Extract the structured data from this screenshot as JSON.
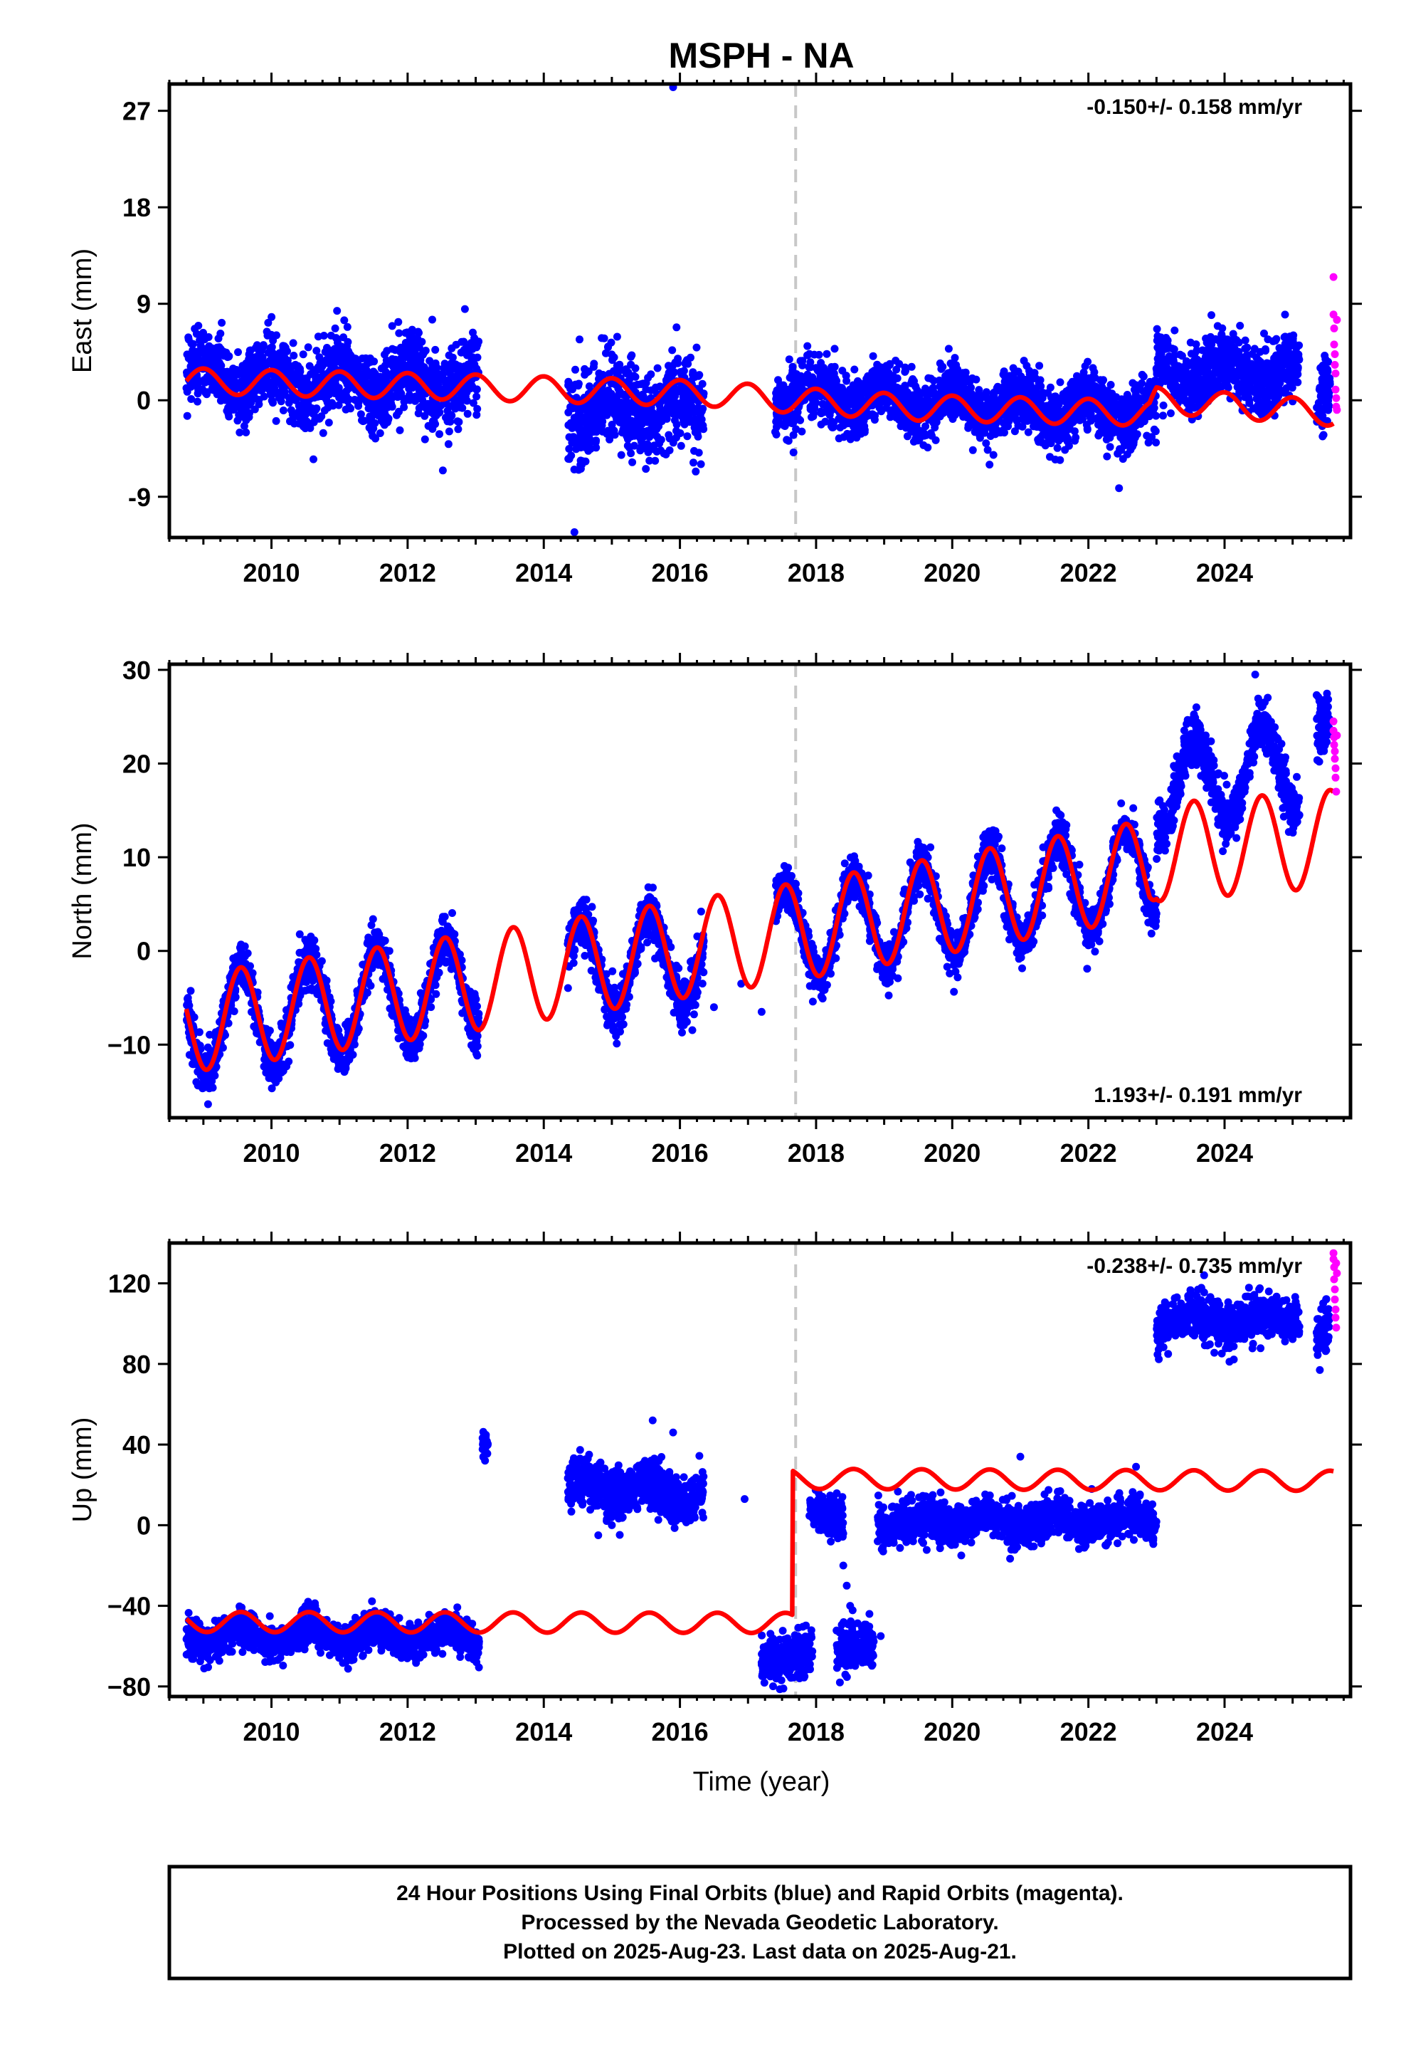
{
  "colors": {
    "final_orbits": "#0000ff",
    "rapid_orbits": "#ff00ff",
    "model": "#ff0000",
    "event_line": "#c8c8c8",
    "frame": "#000000"
  },
  "chart_data": {
    "type": "scatter",
    "title": "MSPH - NA",
    "xlabel": "Time (year)",
    "xlim": [
      2008.5,
      2025.85
    ],
    "x_ticks": [
      2010,
      2012,
      2014,
      2016,
      2018,
      2020,
      2022,
      2024
    ],
    "x_tick_labels": [
      "2010",
      "2012",
      "2014",
      "2016",
      "2018",
      "2020",
      "2022",
      "2024"
    ],
    "event_line_x": 2017.7,
    "footer": {
      "line1": "24 Hour Positions Using Final Orbits (blue) and Rapid Orbits (magenta).",
      "line2": "Processed by the Nevada Geodetic Laboratory.",
      "line3": "Plotted on 2025-Aug-23. Last data on 2025-Aug-21."
    },
    "panels": [
      {
        "id": "east",
        "ylabel": "East (mm)",
        "ylim": [
          -12.8,
          29.5
        ],
        "y_ticks": [
          -9,
          0,
          9,
          18,
          27
        ],
        "y_tick_labels": [
          "-9",
          "0",
          "9",
          "18",
          "27"
        ],
        "rate": "-0.150+/- 0.158 mm/yr",
        "rate_position": "top-right",
        "model": {
          "trend": [
            [
              2008.75,
              1.8
            ],
            [
              2013.0,
              1.2
            ],
            [
              2016.5,
              0.6
            ],
            [
              2017.65,
              0.0
            ],
            [
              2019.5,
              -0.7
            ],
            [
              2022.9,
              -1.2
            ],
            [
              2023.0,
              0.0
            ],
            [
              2025.6,
              -1.2
            ]
          ],
          "amplitude": 1.2,
          "phase_peak": 0.0
        },
        "segments": [
          {
            "start": 2008.75,
            "end": 2013.05,
            "trend": [
              [
                2008.75,
                2.0
              ],
              [
                2013.05,
                1.6
              ]
            ],
            "amp": 1.3,
            "peak": 0.0,
            "scatter": 1.8
          },
          {
            "start": 2014.35,
            "end": 2016.35,
            "trend": [
              [
                2014.35,
                -0.6
              ],
              [
                2016.35,
                -0.8
              ]
            ],
            "amp": 1.2,
            "peak": 0.0,
            "scatter": 2.0
          },
          {
            "start": 2017.4,
            "end": 2023.0,
            "trend": [
              [
                2017.4,
                0.6
              ],
              [
                2023.0,
                -1.2
              ]
            ],
            "amp": 1.2,
            "peak": 0.0,
            "scatter": 1.4
          },
          {
            "start": 2023.0,
            "end": 2025.1,
            "trend": [
              [
                2023.0,
                2.5
              ],
              [
                2025.1,
                2.7
              ]
            ],
            "amp": 1.0,
            "peak": 0.0,
            "scatter": 1.6
          },
          {
            "start": 2025.35,
            "end": 2025.55,
            "trend": [
              [
                2025.35,
                0.0
              ],
              [
                2025.55,
                1.0
              ]
            ],
            "amp": 0,
            "peak": 0.0,
            "scatter": 1.8
          }
        ],
        "outliers": [
          [
            2015.9,
            29.2
          ],
          [
            2014.45,
            -12.3
          ],
          [
            2015.95,
            6.8
          ],
          [
            2014.85,
            5.8
          ],
          [
            2022.45,
            -8.2
          ]
        ],
        "rapid": [
          [
            2025.6,
            11.5
          ],
          [
            2025.6,
            8.0
          ],
          [
            2025.61,
            6.7
          ],
          [
            2025.61,
            5.2
          ],
          [
            2025.62,
            4.3
          ],
          [
            2025.62,
            3.3
          ],
          [
            2025.63,
            2.5
          ],
          [
            2025.63,
            1.0
          ],
          [
            2025.64,
            0.2
          ],
          [
            2025.64,
            -0.6
          ],
          [
            2025.65,
            7.5
          ],
          [
            2025.65,
            -0.9
          ]
        ]
      },
      {
        "id": "north",
        "ylabel": "North (mm)",
        "ylim": [
          -17.8,
          30.6
        ],
        "y_ticks": [
          -10,
          0,
          10,
          20,
          30
        ],
        "y_tick_labels": [
          "−10",
          "0",
          "10",
          "20",
          "30"
        ],
        "rate": "1.193+/- 0.191 mm/yr",
        "rate_position": "bottom-right",
        "model": {
          "trend": [
            [
              2008.75,
              -7.8
            ],
            [
              2013.0,
              -3.3
            ],
            [
              2017.65,
              2.0
            ],
            [
              2022.9,
              8.8
            ],
            [
              2023.0,
              10.5
            ],
            [
              2025.6,
              12.0
            ]
          ],
          "amplitude": 5.2,
          "phase_peak": 0.55
        },
        "segments": [
          {
            "start": 2008.75,
            "end": 2013.05,
            "trend": [
              [
                2008.75,
                -8.0
              ],
              [
                2013.05,
                -3.5
              ]
            ],
            "amp": 5.3,
            "peak": 0.55,
            "scatter": 1.3
          },
          {
            "start": 2014.35,
            "end": 2016.35,
            "trend": [
              [
                2014.35,
                -2.0
              ],
              [
                2016.35,
                -0.5
              ]
            ],
            "amp": 5.0,
            "peak": 0.55,
            "scatter": 1.4
          },
          {
            "start": 2017.4,
            "end": 2023.0,
            "trend": [
              [
                2017.4,
                1.5
              ],
              [
                2023.0,
                8.5
              ]
            ],
            "amp": 5.0,
            "peak": 0.55,
            "scatter": 1.2
          },
          {
            "start": 2023.0,
            "end": 2025.1,
            "trend": [
              [
                2023.0,
                17.5
              ],
              [
                2025.1,
                20.0
              ]
            ],
            "amp": 4.8,
            "peak": 0.55,
            "scatter": 1.4
          },
          {
            "start": 2025.35,
            "end": 2025.55,
            "trend": [
              [
                2025.35,
                23.5
              ],
              [
                2025.55,
                24.5
              ]
            ],
            "amp": 0,
            "peak": 0.55,
            "scatter": 1.5
          }
        ],
        "outliers": [
          [
            2024.45,
            29.5
          ],
          [
            2017.2,
            -6.5
          ],
          [
            2016.9,
            -3.5
          ],
          [
            2016.5,
            -6.0
          ]
        ],
        "rapid": [
          [
            2025.6,
            24.5
          ],
          [
            2025.6,
            23.5
          ],
          [
            2025.61,
            22.8
          ],
          [
            2025.61,
            22.0
          ],
          [
            2025.62,
            21.3
          ],
          [
            2025.62,
            20.5
          ],
          [
            2025.63,
            19.5
          ],
          [
            2025.63,
            18.5
          ],
          [
            2025.64,
            17.0
          ],
          [
            2025.65,
            23.0
          ]
        ]
      },
      {
        "id": "up",
        "ylabel": "Up (mm)",
        "ylim": [
          -85,
          140
        ],
        "y_ticks": [
          -80,
          -40,
          0,
          40,
          80,
          120
        ],
        "y_tick_labels": [
          "−80",
          "−40",
          "0",
          "40",
          "80",
          "120"
        ],
        "rate": "-0.238+/- 0.735 mm/yr",
        "rate_position": "top-right",
        "model": {
          "trend": [
            [
              2008.75,
              -48.0
            ],
            [
              2017.65,
              -48.5
            ],
            [
              2017.66,
              23.0
            ],
            [
              2025.6,
              22.0
            ]
          ],
          "amplitude": 5.0,
          "phase_peak": 0.55
        },
        "segments": [
          {
            "start": 2008.75,
            "end": 2013.05,
            "trend": [
              [
                2008.75,
                -55.0
              ],
              [
                2013.05,
                -55.0
              ]
            ],
            "amp": 4.0,
            "peak": 0.55,
            "scatter": 4.5
          },
          {
            "start": 2013.1,
            "end": 2013.18,
            "trend": [
              [
                2013.1,
                40.0
              ],
              [
                2013.18,
                38.0
              ]
            ],
            "amp": 0,
            "peak": 0.55,
            "scatter": 3.5
          },
          {
            "start": 2014.35,
            "end": 2016.35,
            "trend": [
              [
                2014.35,
                20.0
              ],
              [
                2016.35,
                15.0
              ]
            ],
            "amp": 4.0,
            "peak": 0.55,
            "scatter": 6.0
          },
          {
            "start": 2017.2,
            "end": 2017.95,
            "trend": [
              [
                2017.2,
                -68.0
              ],
              [
                2017.95,
                -62.0
              ]
            ],
            "amp": 0,
            "peak": 0.55,
            "scatter": 5.5
          },
          {
            "start": 2017.9,
            "end": 2018.4,
            "trend": [
              [
                2017.9,
                8.0
              ],
              [
                2018.4,
                2.0
              ]
            ],
            "amp": 0,
            "peak": 0.55,
            "scatter": 5.0
          },
          {
            "start": 2018.3,
            "end": 2018.85,
            "trend": [
              [
                2018.3,
                -62.0
              ],
              [
                2018.85,
                -60.0
              ]
            ],
            "amp": 0,
            "peak": 0.55,
            "scatter": 6.0
          },
          {
            "start": 2018.9,
            "end": 2023.0,
            "trend": [
              [
                2018.9,
                2.0
              ],
              [
                2023.0,
                2.0
              ]
            ],
            "amp": 3.0,
            "peak": 0.55,
            "scatter": 5.0
          },
          {
            "start": 2023.0,
            "end": 2025.1,
            "trend": [
              [
                2023.0,
                101.0
              ],
              [
                2025.1,
                103.0
              ]
            ],
            "amp": 3.0,
            "peak": 0.55,
            "scatter": 5.5
          },
          {
            "start": 2025.35,
            "end": 2025.55,
            "trend": [
              [
                2025.35,
                94.0
              ],
              [
                2025.55,
                100.0
              ]
            ],
            "amp": 0,
            "peak": 0.55,
            "scatter": 7.0
          }
        ],
        "outliers": [
          [
            2015.6,
            52.0
          ],
          [
            2015.9,
            46.0
          ],
          [
            2018.4,
            -20.0
          ],
          [
            2018.45,
            -30.0
          ],
          [
            2018.5,
            -40.0
          ],
          [
            2018.35,
            -78.0
          ],
          [
            2016.95,
            13.0
          ],
          [
            2018.95,
            -55.0
          ],
          [
            2025.4,
            77.0
          ],
          [
            2023.7,
            124.0
          ],
          [
            2021.0,
            34.0
          ],
          [
            2022.7,
            29.0
          ],
          [
            2014.8,
            -5.0
          ],
          [
            2015.0,
            0.0
          ]
        ],
        "rapid": [
          [
            2025.6,
            135.0
          ],
          [
            2025.6,
            132.0
          ],
          [
            2025.61,
            128.0
          ],
          [
            2025.61,
            122.0
          ],
          [
            2025.62,
            117.0
          ],
          [
            2025.62,
            112.0
          ],
          [
            2025.63,
            107.0
          ],
          [
            2025.63,
            103.0
          ],
          [
            2025.64,
            130.0
          ],
          [
            2025.64,
            98.0
          ],
          [
            2025.65,
            125.0
          ]
        ]
      }
    ]
  }
}
